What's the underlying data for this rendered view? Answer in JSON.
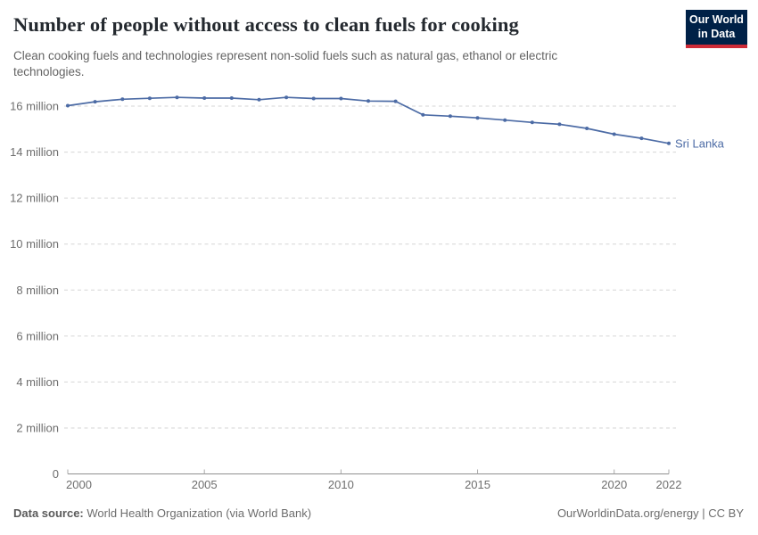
{
  "header": {
    "title": "Number of people without access to clean fuels for cooking",
    "subtitle": "Clean cooking fuels and technologies represent non-solid fuels such as natural gas, ethanol or electric technologies.",
    "logo": {
      "line1": "Our World",
      "line2": "in Data",
      "bg_color": "#002147",
      "accent_color": "#CE2B37"
    }
  },
  "chart_data": {
    "type": "line",
    "title": "Number of people without access to clean fuels for cooking",
    "subtitle": "Clean cooking fuels and technologies represent non-solid fuels such as natural gas, ethanol or electric technologies.",
    "unit": "people",
    "x": [
      2000,
      2001,
      2002,
      2003,
      2004,
      2005,
      2006,
      2007,
      2008,
      2009,
      2010,
      2011,
      2012,
      2013,
      2014,
      2015,
      2016,
      2017,
      2018,
      2019,
      2020,
      2021,
      2022
    ],
    "series": [
      {
        "name": "Sri Lanka",
        "color": "#4C6BA5",
        "values_millions": [
          16.02,
          16.19,
          16.3,
          16.34,
          16.38,
          16.35,
          16.35,
          16.28,
          16.38,
          16.33,
          16.33,
          16.22,
          16.21,
          15.62,
          15.56,
          15.49,
          15.39,
          15.29,
          15.21,
          15.03,
          14.78,
          14.6,
          14.38
        ]
      }
    ],
    "end_label": "Sri Lanka",
    "xlim": [
      2000,
      2022
    ],
    "ylim_millions": [
      0,
      17.1
    ],
    "xticks": [
      {
        "value": 2000,
        "label": "2000"
      },
      {
        "value": 2005,
        "label": "2005"
      },
      {
        "value": 2010,
        "label": "2010"
      },
      {
        "value": 2015,
        "label": "2015"
      },
      {
        "value": 2020,
        "label": "2020"
      },
      {
        "value": 2022,
        "label": "2022"
      }
    ],
    "yticks": [
      {
        "value": 0,
        "label": "0"
      },
      {
        "value": 2,
        "label": "2 million"
      },
      {
        "value": 4,
        "label": "4 million"
      },
      {
        "value": 6,
        "label": "6 million"
      },
      {
        "value": 8,
        "label": "8 million"
      },
      {
        "value": 10,
        "label": "10 million"
      },
      {
        "value": 12,
        "label": "12 million"
      },
      {
        "value": 14,
        "label": "14 million"
      },
      {
        "value": 16,
        "label": "16 million"
      }
    ],
    "grid": "horizontal-dashed",
    "legend_position": "end-of-line",
    "colors": {
      "line": "#4C6BA5",
      "gridline": "#d6d6d6",
      "axis": "#8f8f8f",
      "tick_label": "#6e6e6e"
    }
  },
  "footer": {
    "source_label": "Data source:",
    "source_value": " World Health Organization (via World Bank)",
    "credit": "OurWorldinData.org/energy | CC BY"
  }
}
